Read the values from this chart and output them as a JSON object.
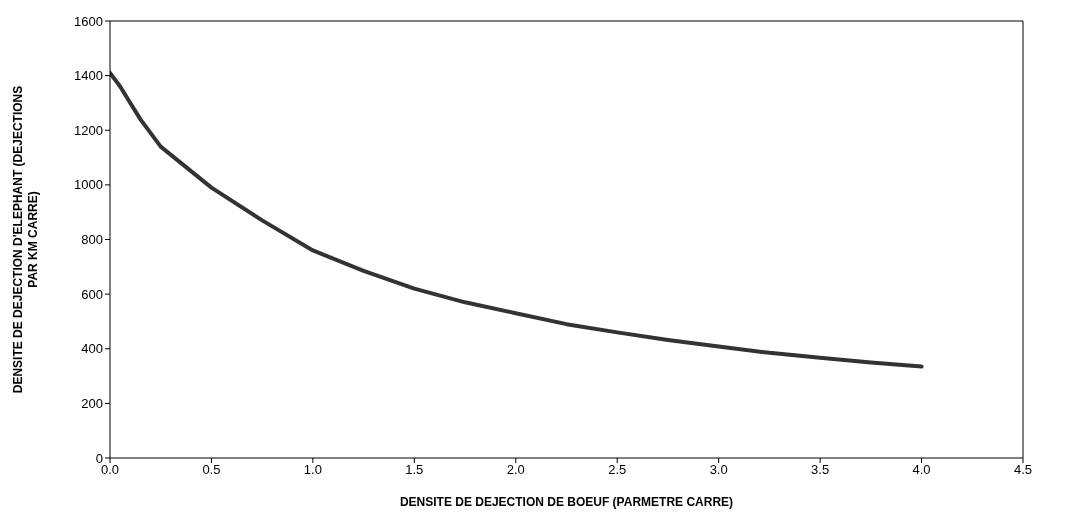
{
  "chart_data": {
    "type": "line",
    "xlabel": "DENSITE DE DEJECTION DE BOEUF (PARMETRE CARRE)",
    "ylabel": "DENSITE DE DEJECTION D'ELEPHANT (DEJECTIONS PAR KM CARRE)",
    "x": [
      0,
      0.05,
      0.1,
      0.15,
      0.25,
      0.5,
      0.75,
      1.0,
      1.25,
      1.5,
      1.75,
      2.0,
      2.25,
      2.5,
      2.75,
      3.0,
      3.25,
      3.5,
      3.75,
      4.0
    ],
    "series": [
      {
        "color": "#333333",
        "values": [
          1410,
          1360,
          1300,
          1240,
          1140,
          990,
          870,
          760,
          685,
          620,
          570,
          530,
          490,
          460,
          432,
          408,
          385,
          367,
          350,
          335
        ]
      }
    ],
    "xlim": [
      0,
      4.5
    ],
    "xticks": [
      {
        "value": 0,
        "label": "0.0"
      },
      {
        "value": 0.5,
        "label": "0.5"
      },
      {
        "value": 1,
        "label": "1.0"
      },
      {
        "value": 1.5,
        "label": "1.5"
      },
      {
        "value": 2,
        "label": "2.0"
      },
      {
        "value": 2.5,
        "label": "2.5"
      },
      {
        "value": 3,
        "label": "3.0"
      },
      {
        "value": 3.5,
        "label": "3.5"
      },
      {
        "value": 4,
        "label": "4.0"
      },
      {
        "value": 4.5,
        "label": "4.5"
      }
    ],
    "ylim": [
      0,
      1600
    ],
    "yticks": [
      0,
      200,
      400,
      600,
      800,
      1000,
      1200,
      1400,
      1600
    ],
    "grid": false,
    "legend": false,
    "marker": "none",
    "line_style": "solid"
  }
}
